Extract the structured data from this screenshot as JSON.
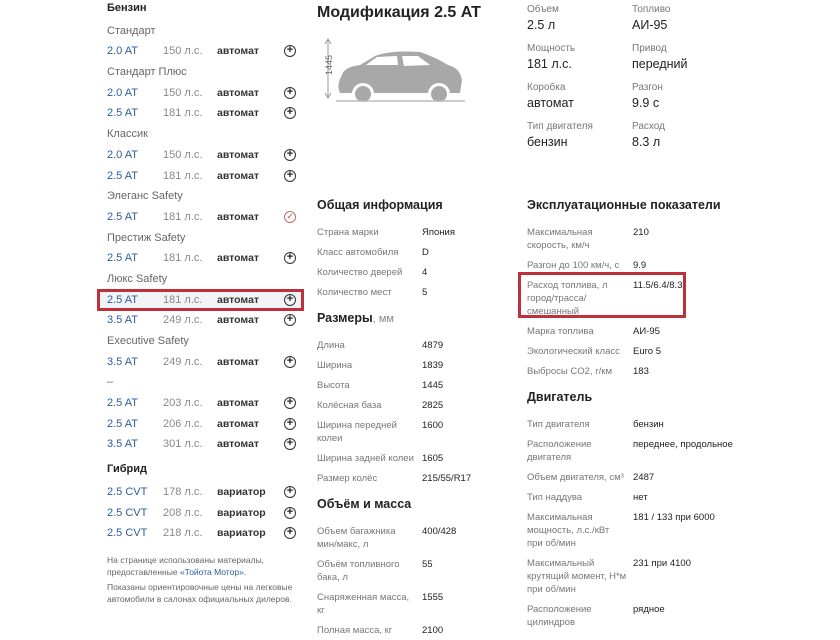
{
  "sidebar": {
    "sections": [
      {
        "title": "Бензин",
        "groups": [
          {
            "name": "Стандарт",
            "rows": [
              {
                "model": "2.0 AT",
                "hp": "150 л.с.",
                "trans": "автомат",
                "icon": "plus-circle"
              }
            ]
          },
          {
            "name": "Стандарт Плюс",
            "rows": [
              {
                "model": "2.0 AT",
                "hp": "150 л.с.",
                "trans": "автомат",
                "icon": "plus-circle"
              },
              {
                "model": "2.5 AT",
                "hp": "181 л.с.",
                "trans": "автомат",
                "icon": "plus-circle"
              }
            ]
          },
          {
            "name": "Классик",
            "rows": [
              {
                "model": "2.0 AT",
                "hp": "150 л.с.",
                "trans": "автомат",
                "icon": "plus-circle"
              },
              {
                "model": "2.5 AT",
                "hp": "181 л.с.",
                "trans": "автомат",
                "icon": "plus-circle"
              }
            ]
          },
          {
            "name": "Элеганс Safety",
            "rows": [
              {
                "model": "2.5 AT",
                "hp": "181 л.с.",
                "trans": "автомат",
                "icon": "check-circle"
              }
            ]
          },
          {
            "name": "Престиж Safety",
            "rows": [
              {
                "model": "2.5 AT",
                "hp": "181 л.с.",
                "trans": "автомат",
                "icon": "plus-circle"
              }
            ]
          },
          {
            "name": "Люкс Safety",
            "rows": [
              {
                "model": "2.5 AT",
                "hp": "181 л.с.",
                "trans": "автомат",
                "icon": "plus-circle",
                "highlighted": true
              },
              {
                "model": "3.5 AT",
                "hp": "249 л.с.",
                "trans": "автомат",
                "icon": "plus-circle"
              }
            ]
          },
          {
            "name": "Executive Safety",
            "rows": [
              {
                "model": "3.5 AT",
                "hp": "249 л.с.",
                "trans": "автомат",
                "icon": "plus-circle"
              }
            ]
          },
          {
            "name": "–",
            "rows": [
              {
                "model": "2.5 AT",
                "hp": "203 л.с.",
                "trans": "автомат",
                "icon": "plus-circle"
              },
              {
                "model": "2.5 AT",
                "hp": "206 л.с.",
                "trans": "автомат",
                "icon": "plus-circle"
              },
              {
                "model": "3.5 AT",
                "hp": "301 л.с.",
                "trans": "автомат",
                "icon": "plus-circle"
              }
            ]
          }
        ]
      },
      {
        "title": "Гибрид",
        "groups": [
          {
            "name": "",
            "rows": [
              {
                "model": "2.5 CVT",
                "hp": "178 л.с.",
                "trans": "вариатор",
                "icon": "plus-circle"
              },
              {
                "model": "2.5 CVT",
                "hp": "208 л.с.",
                "trans": "вариатор",
                "icon": "plus-circle"
              },
              {
                "model": "2.5 CVT",
                "hp": "218 л.с.",
                "trans": "вариатор",
                "icon": "plus-circle"
              }
            ]
          }
        ]
      }
    ],
    "note1_pre": "На странице использованы материалы, предоставленные ",
    "note1_link": "«Тойота Мотор»",
    "note1_post": ".",
    "note2": "Показаны ориентировочные цены на легковые автомобили в салонах официальных дилеров."
  },
  "main": {
    "title": "Модификация 2.5 AT",
    "car_height": "1445",
    "summary": [
      {
        "label": "Объем",
        "value": "2.5 л"
      },
      {
        "label": "Топливо",
        "value": "АИ-95"
      },
      {
        "label": "Мощность",
        "value": "181 л.с."
      },
      {
        "label": "Привод",
        "value": "передний"
      },
      {
        "label": "Коробка",
        "value": "автомат"
      },
      {
        "label": "Разгон",
        "value": "9.9 с"
      },
      {
        "label": "Тип двигателя",
        "value": "бензин"
      },
      {
        "label": "Расход",
        "value": "8.3 л"
      }
    ],
    "left_sections": [
      {
        "title": "Общая информация",
        "unit": "",
        "rows": [
          [
            "Страна марки",
            "Япония"
          ],
          [
            "Класс автомобиля",
            "D"
          ],
          [
            "Количество дверей",
            "4"
          ],
          [
            "Количество мест",
            "5"
          ]
        ]
      },
      {
        "title": "Размеры",
        "unit": ", мм",
        "rows": [
          [
            "Длина",
            "4879"
          ],
          [
            "Ширина",
            "1839"
          ],
          [
            "Высота",
            "1445"
          ],
          [
            "Колёсная база",
            "2825"
          ],
          [
            "Ширина передней колеи",
            "1600"
          ],
          [
            "Ширина задней колеи",
            "1605"
          ],
          [
            "Размер колёс",
            "215/55/R17"
          ]
        ]
      },
      {
        "title": "Объём и масса",
        "unit": "",
        "rows": [
          [
            "Объем багажника мин/макс, л",
            "400/428"
          ],
          [
            "Объём топливного бака, л",
            "55"
          ],
          [
            "Снаряженная масса, кг",
            "1555"
          ],
          [
            "Полная масса, кг",
            "2100"
          ]
        ]
      }
    ],
    "right_sections": [
      {
        "title": "Эксплуатационные показатели",
        "unit": "",
        "rows": [
          [
            "Максимальная скорость, км/ч",
            "210"
          ],
          [
            "Разгон до 100 км/ч, с",
            "9.9"
          ],
          [
            "Расход топлива, л город/трасса/смешанный",
            "11.5/6.4/8.3"
          ],
          [
            "Марка топлива",
            "АИ-95"
          ],
          [
            "Экологический класс",
            "Euro 5"
          ],
          [
            "Выбросы CO2, г/км",
            "183"
          ]
        ]
      },
      {
        "title": "Двигатель",
        "unit": "",
        "rows": [
          [
            "Тип двигателя",
            "бензин"
          ],
          [
            "Расположение двигателя",
            "переднее, продольное"
          ],
          [
            "Объем двигателя, см³",
            "2487"
          ],
          [
            "Тип наддува",
            "нет"
          ],
          [
            "Максимальная мощность, л.с./кВт при об/мин",
            "181 / 133 при 6000"
          ],
          [
            "Максимальный крутящий момент, Н*м при об/мин",
            "231 при 4100"
          ],
          [
            "Расположение цилиндров",
            "рядное"
          ]
        ]
      }
    ]
  },
  "colors": {
    "link": "#2a5d9f",
    "highlight": "#c0303a"
  }
}
